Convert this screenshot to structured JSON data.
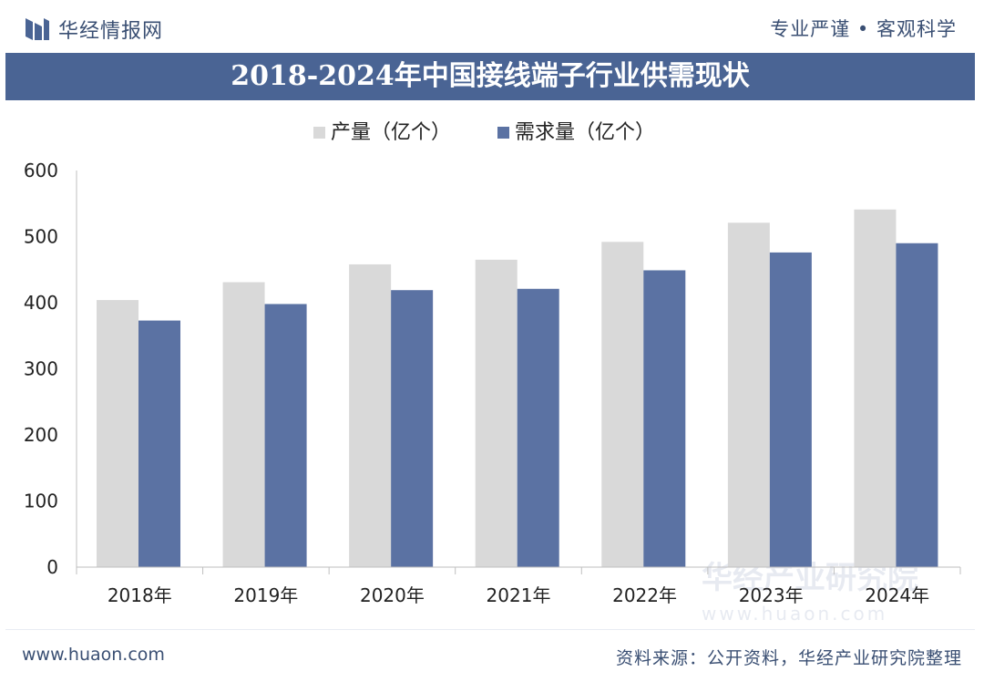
{
  "header": {
    "brand_name": "华经情报网",
    "slogan": "专业严谨 • 客观科学"
  },
  "footer": {
    "site": "www.huaon.com",
    "source": "资料来源：公开资料，华经产业研究院整理"
  },
  "watermark": {
    "name": "华经产业研究院",
    "url": "www.huaon.com"
  },
  "colors": {
    "production": "#d9d9d9",
    "demand": "#5b72a3",
    "title_bar": "#4a6494",
    "text": "#3a4f73"
  },
  "chart_data": {
    "type": "bar",
    "title": "2018-2024年中国接线端子行业供需现状",
    "categories": [
      "2018年",
      "2019年",
      "2020年",
      "2021年",
      "2022年",
      "2023年",
      "2024年"
    ],
    "series": [
      {
        "name": "产量（亿个）",
        "values": [
          404,
          431,
          458,
          465,
          492,
          521,
          541
        ]
      },
      {
        "name": "需求量（亿个）",
        "values": [
          373,
          398,
          419,
          421,
          449,
          476,
          490
        ]
      }
    ],
    "ylim": [
      0,
      600
    ],
    "yticks": [
      0,
      100,
      200,
      300,
      400,
      500,
      600
    ],
    "grid": false,
    "legend": "top-center"
  }
}
